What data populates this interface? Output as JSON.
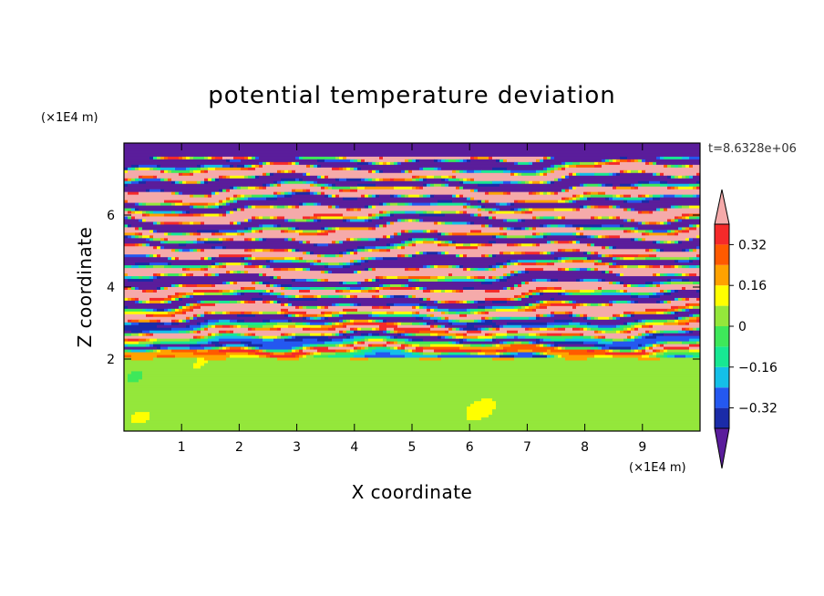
{
  "chart_data": {
    "type": "heatmap",
    "title": "potential temperature deviation",
    "xlabel": "X coordinate",
    "ylabel": "Z coordinate",
    "x_unit": "(×1E4 m)",
    "y_unit": "(×1E4 m)",
    "time_label": "t=8.6328e+06",
    "xlim": [
      0,
      10
    ],
    "ylim": [
      0,
      8
    ],
    "x_ticks": [
      1,
      2,
      3,
      4,
      5,
      6,
      7,
      8,
      9
    ],
    "y_ticks": [
      2,
      4,
      6
    ],
    "colorbar": {
      "tick_values": [
        0.32,
        0.16,
        0,
        -0.16,
        -0.32
      ],
      "tick_labels": [
        "0.32",
        "0.16",
        "0",
        "−0.16",
        "−0.32"
      ],
      "levels": [
        -0.4,
        -0.32,
        -0.24,
        -0.16,
        -0.08,
        0,
        0.08,
        0.16,
        0.24,
        0.32,
        0.4
      ],
      "colors": [
        "#5a1d9b",
        "#1a2ba8",
        "#2458f0",
        "#14bfe8",
        "#17e893",
        "#3ee85a",
        "#94e73b",
        "#ffff00",
        "#ffa200",
        "#ff5a00",
        "#f52a2a",
        "#f5aaaa"
      ],
      "extend": "both"
    },
    "structure": {
      "stable_layer_top_z": 2.05,
      "lower_layer_value_range": [
        0,
        0.08
      ],
      "upper_layer_description_values": [
        -0.4,
        0.4
      ]
    }
  }
}
